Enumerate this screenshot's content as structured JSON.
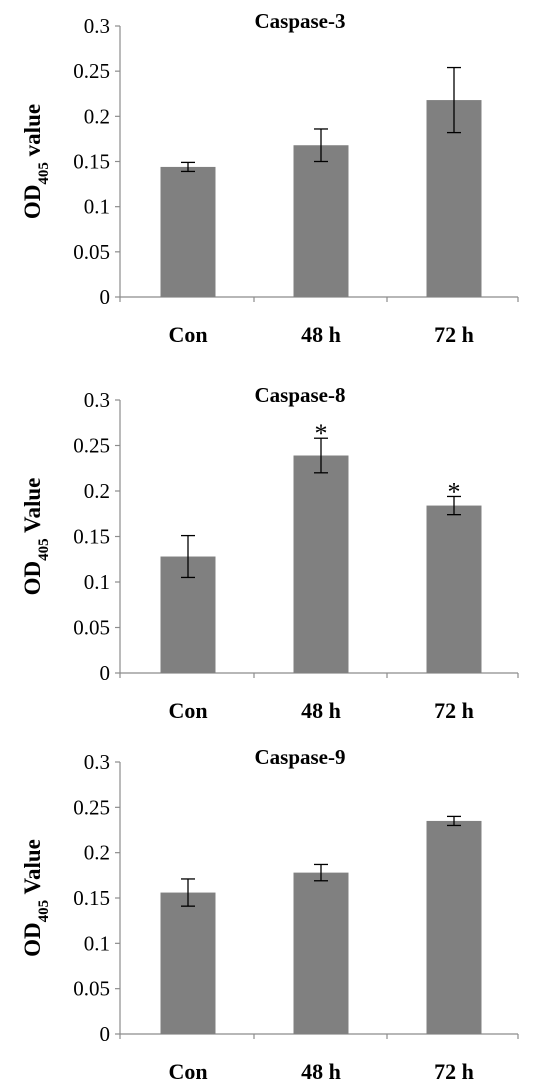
{
  "chart_data": [
    {
      "type": "bar",
      "title": "Caspase-3",
      "ylabel": {
        "prefix": "OD",
        "subscript": "405",
        "suffix": " value"
      },
      "categories": [
        "Con",
        "48 h",
        "72 h"
      ],
      "values": [
        0.144,
        0.168,
        0.218
      ],
      "errors": [
        0.005,
        0.018,
        0.036
      ],
      "annotations": [
        "",
        "",
        ""
      ],
      "ylim": [
        0,
        0.3
      ],
      "yticks": [
        "0",
        "0.05",
        "0.1",
        "0.15",
        "0.2",
        "0.25",
        "0.3"
      ],
      "grid": false
    },
    {
      "type": "bar",
      "title": "Caspase-8",
      "ylabel": {
        "prefix": "OD",
        "subscript": "405",
        "suffix": " Value"
      },
      "categories": [
        "Con",
        "48 h",
        "72 h"
      ],
      "values": [
        0.128,
        0.239,
        0.184
      ],
      "errors": [
        0.023,
        0.019,
        0.01
      ],
      "annotations": [
        "",
        "*",
        "*"
      ],
      "ylim": [
        0,
        0.3
      ],
      "yticks": [
        "0",
        "0.05",
        "0.1",
        "0.15",
        "0.2",
        "0.25",
        "0.3"
      ],
      "grid": false
    },
    {
      "type": "bar",
      "title": "Caspase-9",
      "ylabel": {
        "prefix": "OD",
        "subscript": "405",
        "suffix": " Value"
      },
      "categories": [
        "Con",
        "48 h",
        "72 h"
      ],
      "values": [
        0.156,
        0.178,
        0.235
      ],
      "errors": [
        0.015,
        0.009,
        0.005
      ],
      "annotations": [
        "",
        "",
        ""
      ],
      "ylim": [
        0,
        0.3
      ],
      "yticks": [
        "0",
        "0.05",
        "0.1",
        "0.15",
        "0.2",
        "0.25",
        "0.3"
      ],
      "grid": false
    }
  ]
}
